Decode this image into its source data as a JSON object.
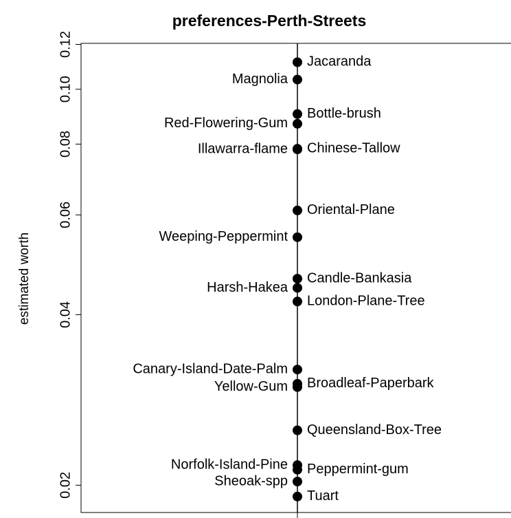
{
  "chart_data": {
    "type": "dotchart",
    "title": "preferences-Perth-Streets",
    "ylabel": "estimated worth",
    "log_y": true,
    "color": "#000000",
    "categories": [
      "Jacaranda",
      "Magnolia",
      "Bottle-brush",
      "Red-Flowering-Gum",
      "Chinese-Tallow",
      "Illawarra-flame",
      "Oriental-Plane",
      "Weeping-Peppermint",
      "Candle-Bankasia",
      "Harsh-Hakea",
      "London-Plane-Tree",
      "Canary-Island-Date-Palm",
      "Broadleaf-Paperbark",
      "Yellow-Gum",
      "Queensland-Box-Tree",
      "Norfolk-Island-Pine",
      "Peppermint-gum",
      "Sheoak-spp",
      "Tuart"
    ],
    "values": [
      0.1116,
      0.104,
      0.0904,
      0.0869,
      0.0785,
      0.0783,
      0.0611,
      0.0548,
      0.0463,
      0.0446,
      0.0422,
      0.032,
      0.0302,
      0.0298,
      0.025,
      0.0217,
      0.0213,
      0.0203,
      0.0191
    ],
    "ylim": [
      0.0179,
      0.1205
    ],
    "yticks": [
      0.02,
      0.04,
      0.06,
      0.08,
      {
        "value": 0.1,
        "label": "0.10"
      },
      0.12
    ]
  }
}
